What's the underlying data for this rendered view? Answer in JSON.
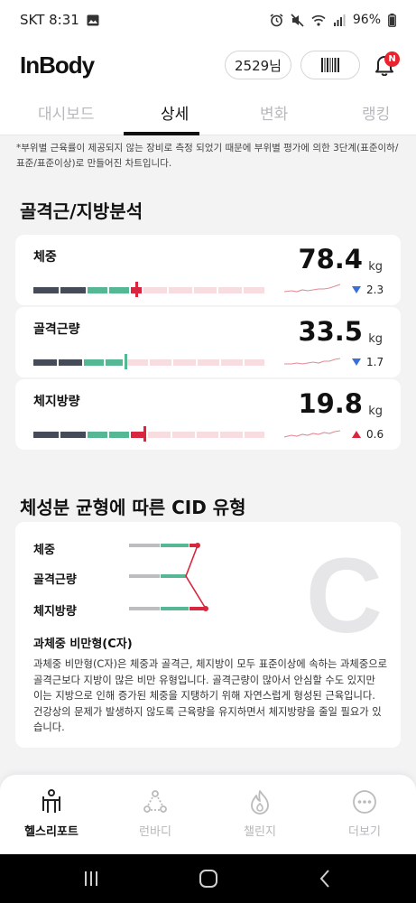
{
  "status_bar": {
    "carrier_time": "SKT 8:31",
    "battery": "96%"
  },
  "header": {
    "logo": "InBody",
    "user_label": "2529님",
    "notification_badge": "N"
  },
  "tabs": [
    {
      "label": "대시보드"
    },
    {
      "label": "상세"
    },
    {
      "label": "변화"
    },
    {
      "label": "랭킹"
    }
  ],
  "active_tab": "상세",
  "note": "*부위별 근육률이 제공되지 않는 장비로 측정 되었기 때문에 부위별 평가에 의한 3단계(표준이하/표준/표준이상)로 만들어진 차트입니다.",
  "analysis": {
    "title": "골격근/지방분석",
    "metrics": [
      {
        "label": "체중",
        "value": "78.4",
        "unit": "kg",
        "change": "2.3",
        "direction": "down"
      },
      {
        "label": "골격근량",
        "value": "33.5",
        "unit": "kg",
        "change": "1.7",
        "direction": "down"
      },
      {
        "label": "체지방량",
        "value": "19.8",
        "unit": "kg",
        "change": "0.6",
        "direction": "up"
      }
    ]
  },
  "cid": {
    "title": "체성분 균형에 따른 CID 유형",
    "labels": [
      "체중",
      "골격근량",
      "체지방량"
    ],
    "letter": "C",
    "type_title": "과체중 비만형(C자)",
    "description": "과체중 비만형(C자)은 체중과 골격근, 체지방이 모두 표준이상에 속하는 과체중으로 골격근보다 지방이 많은 비만 유형입니다. 골격근량이 많아서 안심할 수도 있지만 이는 지방으로 인해 증가된 체중을 지탱하기 위해 자연스럽게 형성된 근육입니다. 건강상의 문제가 발생하지 않도록 근육량을 유지하면서 체지방량을 줄일 필요가 있습니다."
  },
  "bottom_nav": [
    {
      "label": "헬스리포트",
      "icon": "healthreport-icon"
    },
    {
      "label": "런바디",
      "icon": "runbody-icon"
    },
    {
      "label": "챌린지",
      "icon": "flame-icon"
    },
    {
      "label": "더보기",
      "icon": "more-icon"
    }
  ],
  "colors": {
    "dark": "#454b57",
    "green": "#55b794",
    "red": "#d7263d",
    "pink": "#f7dde0",
    "down": "#3b6fd8"
  }
}
